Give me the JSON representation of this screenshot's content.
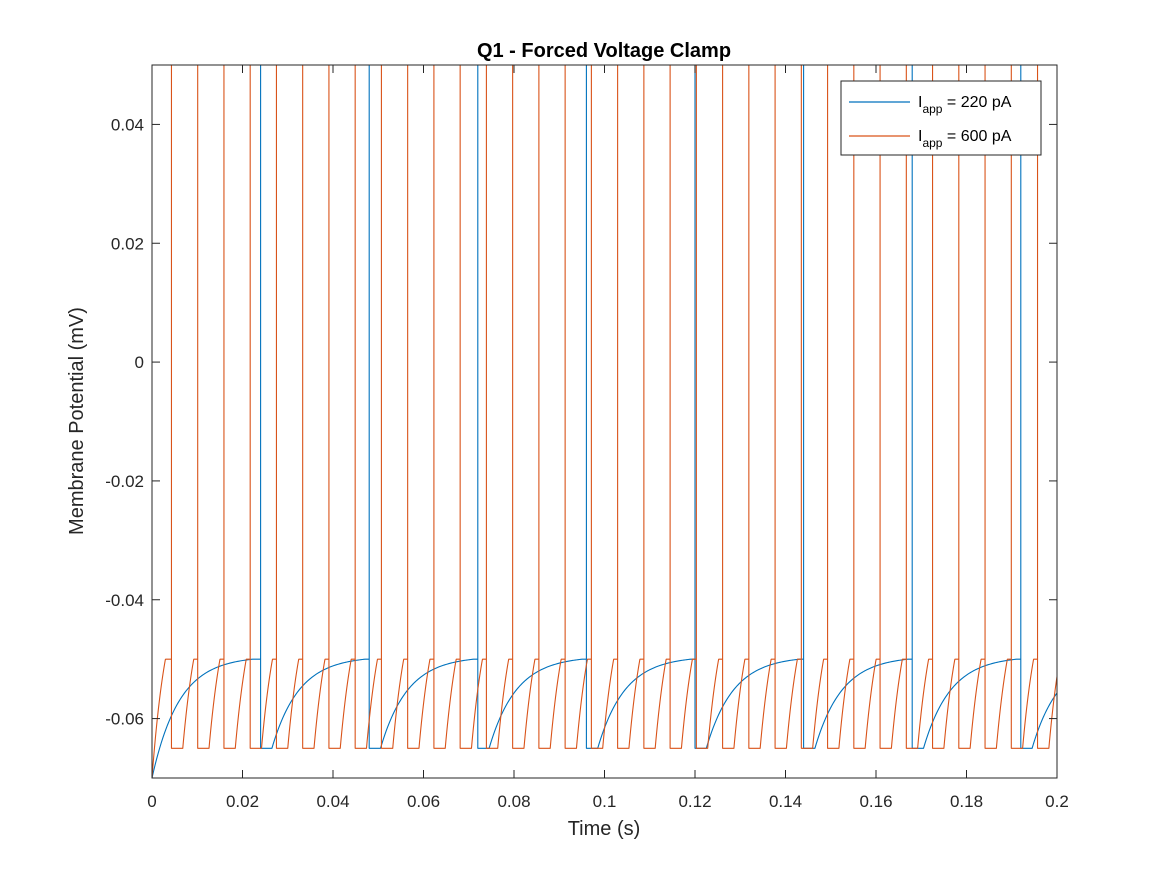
{
  "chart_data": {
    "type": "line",
    "title": "Q1 - Forced Voltage Clamp",
    "xlabel": "Time (s)",
    "ylabel": "Membrane Potential (mV)",
    "xlim": [
      0,
      0.2
    ],
    "ylim": [
      -0.07,
      0.05
    ],
    "x_ticks": [
      0,
      0.02,
      0.04,
      0.06,
      0.08,
      0.1,
      0.12,
      0.14,
      0.16,
      0.18,
      0.2
    ],
    "x_tick_labels": [
      "0",
      "0.02",
      "0.04",
      "0.06",
      "0.08",
      "0.1",
      "0.12",
      "0.14",
      "0.16",
      "0.18",
      "0.2"
    ],
    "y_ticks": [
      -0.06,
      -0.04,
      -0.02,
      0,
      0.02,
      0.04
    ],
    "y_tick_labels": [
      "-0.06",
      "-0.04",
      "-0.02",
      "0",
      "0.02",
      "0.04"
    ],
    "grid": false,
    "box": true,
    "legend_position": "top-right",
    "series": [
      {
        "name_main": "I",
        "name_sub": "app",
        "name_rest": " = 220 pA",
        "color": "#0072BD",
        "start_value": -0.07,
        "reset_value": -0.065,
        "threshold": -0.05,
        "spike_peak": 0.05,
        "spike_times": [
          0.024,
          0.048,
          0.072,
          0.096,
          0.12,
          0.144,
          0.168,
          0.192
        ],
        "refractory_s": 0.0025,
        "tau_s": 0.006,
        "v_inf": -0.0495
      },
      {
        "name_main": "I",
        "name_sub": "app",
        "name_rest": " = 600 pA",
        "color": "#D95319",
        "start_value": -0.07,
        "reset_value": -0.065,
        "threshold": -0.05,
        "spike_peak": 0.05,
        "spike_times": [
          0.0043,
          0.0101,
          0.0159,
          0.0217,
          0.0275,
          0.0333,
          0.0391,
          0.0449,
          0.0507,
          0.0565,
          0.0623,
          0.0681,
          0.0739,
          0.0797,
          0.0855,
          0.0913,
          0.0971,
          0.1029,
          0.1087,
          0.1145,
          0.1203,
          0.1261,
          0.1319,
          0.1377,
          0.1435,
          0.1493,
          0.1551,
          0.1609,
          0.1667,
          0.1725,
          0.1783,
          0.1841,
          0.1899,
          0.1957
        ],
        "refractory_s": 0.0025,
        "tau_s": 0.0035,
        "v_inf": -0.035
      }
    ]
  }
}
